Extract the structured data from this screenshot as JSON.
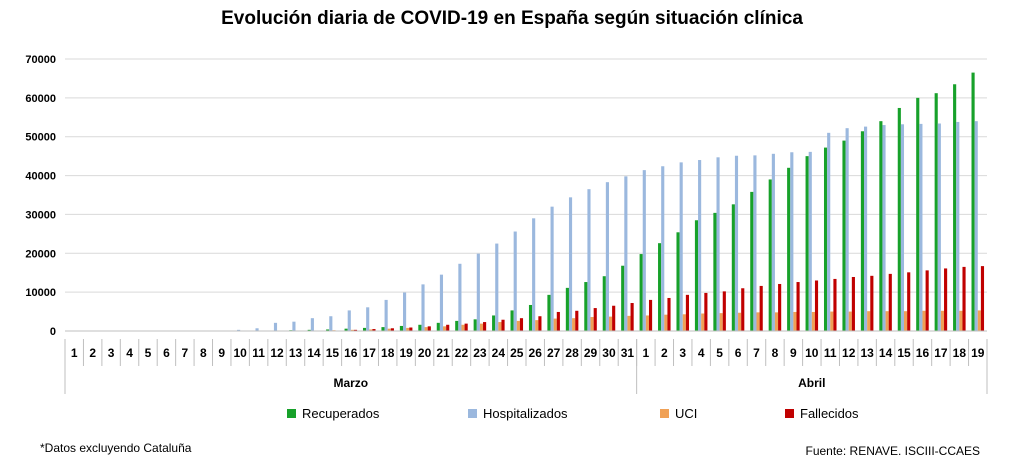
{
  "chart_data": {
    "type": "bar",
    "title": "Evolución diaria de COVID-19 en España según situación clínica",
    "categories": [
      "1",
      "2",
      "3",
      "4",
      "5",
      "6",
      "7",
      "8",
      "9",
      "10",
      "11",
      "12",
      "13",
      "14",
      "15",
      "16",
      "17",
      "18",
      "19",
      "20",
      "21",
      "22",
      "23",
      "24",
      "25",
      "26",
      "27",
      "28",
      "29",
      "30",
      "31",
      "1",
      "2",
      "3",
      "4",
      "5",
      "6",
      "7",
      "8",
      "9",
      "10",
      "11",
      "12",
      "13",
      "14",
      "15",
      "16",
      "17",
      "18",
      "19"
    ],
    "groups": [
      {
        "label": "Marzo",
        "count": 31
      },
      {
        "label": "Abril",
        "count": 19
      }
    ],
    "ylim": [
      0,
      70000
    ],
    "yticks": [
      "0",
      "10000",
      "20000",
      "30000",
      "40000",
      "50000",
      "60000",
      "70000"
    ],
    "grid": true,
    "legend_position": "bottom",
    "series": [
      {
        "name": "Recuperados",
        "color": "#17a12a",
        "values": [
          0,
          0,
          0,
          0,
          0,
          0,
          0,
          0,
          0,
          0,
          0,
          0,
          200,
          300,
          400,
          600,
          800,
          1000,
          1300,
          1600,
          2100,
          2600,
          3000,
          4000,
          5300,
          6700,
          9300,
          11100,
          12600,
          14100,
          16800,
          19800,
          22600,
          25400,
          28500,
          30400,
          32600,
          35800,
          39000,
          42000,
          45000,
          47200,
          49000,
          51400,
          54000,
          57400,
          60000,
          61200,
          63500,
          66500
        ]
      },
      {
        "name": "Hospitalizados",
        "color": "#9bb8de",
        "values": [
          0,
          0,
          0,
          0,
          0,
          0,
          0,
          0,
          0,
          300,
          700,
          2100,
          2400,
          3300,
          3800,
          5300,
          6100,
          8000,
          9900,
          12000,
          14500,
          17300,
          19900,
          22500,
          25600,
          29000,
          32000,
          34400,
          36500,
          38300,
          39800,
          41400,
          42400,
          43400,
          44000,
          44700,
          45100,
          45200,
          45600,
          46000,
          46100,
          51000,
          52200,
          52600,
          53000,
          53200,
          53300,
          53400,
          53800,
          54000
        ]
      },
      {
        "name": "UCI",
        "color": "#f0a156",
        "values": [
          0,
          0,
          0,
          0,
          0,
          0,
          0,
          0,
          0,
          0,
          0,
          0,
          0,
          100,
          200,
          300,
          400,
          600,
          800,
          1000,
          1200,
          1600,
          1900,
          2300,
          2600,
          2800,
          3200,
          3300,
          3600,
          3700,
          3900,
          4000,
          4200,
          4300,
          4500,
          4600,
          4700,
          4800,
          4800,
          4900,
          4900,
          5000,
          5000,
          5100,
          5100,
          5100,
          5200,
          5200,
          5200,
          5300
        ]
      },
      {
        "name": "Fallecidos",
        "color": "#c00000",
        "values": [
          0,
          0,
          0,
          0,
          0,
          0,
          0,
          0,
          0,
          0,
          0,
          0,
          0,
          0,
          0,
          300,
          500,
          700,
          900,
          1200,
          1600,
          1900,
          2300,
          2900,
          3300,
          3800,
          4900,
          5200,
          5900,
          6500,
          7200,
          8000,
          8500,
          9300,
          9800,
          10200,
          11000,
          11600,
          12100,
          12600,
          13000,
          13400,
          13900,
          14200,
          14700,
          15100,
          15600,
          16100,
          16500,
          16700
        ]
      }
    ]
  },
  "notes": {
    "footnote": "*Datos excluyendo Cataluña",
    "source": "Fuente: RENAVE. ISCIII-CCAES"
  }
}
